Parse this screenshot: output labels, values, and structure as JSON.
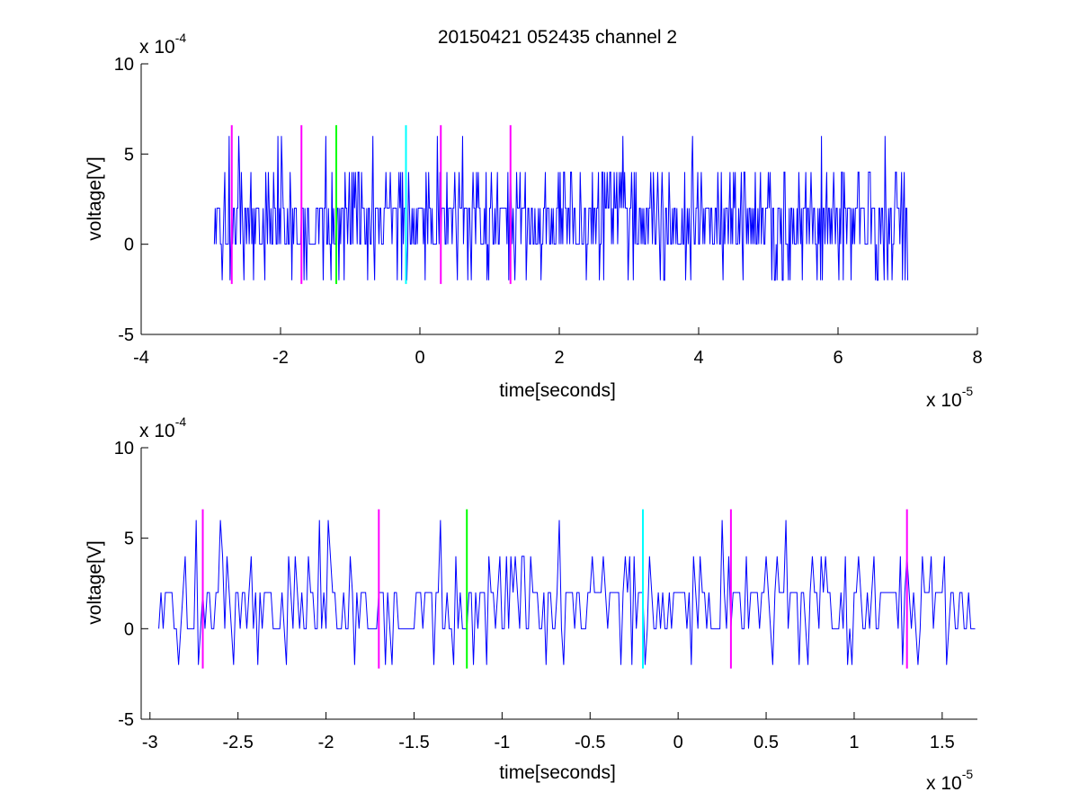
{
  "title": "20150421 052435 channel 2",
  "colors": {
    "signal": "#0000ff",
    "marker_magenta": "#ff00ff",
    "marker_green": "#00ff00",
    "marker_cyan": "#00ffff",
    "axes": "#000000",
    "background": "#ffffff"
  },
  "chart_data": [
    {
      "type": "line",
      "title": "20150421 052435 channel 2",
      "xlabel": "time[seconds]",
      "ylabel": "voltage[V]",
      "x_multiplier": "x 10",
      "x_exponent": "-5",
      "y_multiplier": "x 10",
      "y_exponent": "-4",
      "xlim": [
        -4,
        8
      ],
      "ylim": [
        -5,
        10
      ],
      "x_ticks": [
        -4,
        -2,
        0,
        2,
        4,
        6,
        8
      ],
      "y_ticks": [
        -5,
        0,
        5,
        10
      ],
      "grid": false,
      "series": [
        {
          "x_start": -2.95,
          "x_end": 7.0,
          "values_note": "quantized noise signal, levels in units of 1e-4 V",
          "levels": [
            -2,
            0,
            2,
            4,
            6
          ],
          "typical_level": 2
        }
      ],
      "markers": [
        {
          "x": -2.7,
          "color": "magenta",
          "y_range": [
            -2.2,
            6.6
          ]
        },
        {
          "x": -1.7,
          "color": "magenta",
          "y_range": [
            -2.2,
            6.6
          ]
        },
        {
          "x": -1.2,
          "color": "green",
          "y_range": [
            -2.2,
            6.6
          ]
        },
        {
          "x": -0.2,
          "color": "cyan",
          "y_range": [
            -2.2,
            6.6
          ]
        },
        {
          "x": 0.3,
          "color": "magenta",
          "y_range": [
            -2.2,
            6.6
          ]
        },
        {
          "x": 1.3,
          "color": "magenta",
          "y_range": [
            -2.2,
            6.6
          ]
        }
      ]
    },
    {
      "type": "line",
      "xlabel": "time[seconds]",
      "ylabel": "voltage[V]",
      "x_multiplier": "x 10",
      "x_exponent": "-5",
      "y_multiplier": "x 10",
      "y_exponent": "-4",
      "xlim": [
        -3.05,
        1.7
      ],
      "ylim": [
        -5,
        10
      ],
      "x_ticks": [
        -3,
        -2.5,
        -2,
        -1.5,
        -1,
        -0.5,
        0,
        0.5,
        1,
        1.5
      ],
      "y_ticks": [
        -5,
        0,
        5,
        10
      ],
      "grid": false,
      "series": [
        {
          "x_start": -2.95,
          "x_end": 1.7,
          "values_note": "zoomed view of the same quantized noise signal, levels in units of 1e-4 V",
          "levels": [
            -2,
            0,
            2,
            4,
            6
          ],
          "typical_level": 2
        }
      ],
      "markers": [
        {
          "x": -2.7,
          "color": "magenta",
          "y_range": [
            -2.2,
            6.6
          ]
        },
        {
          "x": -1.7,
          "color": "magenta",
          "y_range": [
            -2.2,
            6.6
          ]
        },
        {
          "x": -1.2,
          "color": "green",
          "y_range": [
            -2.2,
            6.6
          ]
        },
        {
          "x": -0.2,
          "color": "cyan",
          "y_range": [
            -2.2,
            6.6
          ]
        },
        {
          "x": 0.3,
          "color": "magenta",
          "y_range": [
            -2.2,
            6.6
          ]
        },
        {
          "x": 1.3,
          "color": "magenta",
          "y_range": [
            -2.2,
            6.6
          ]
        }
      ]
    }
  ]
}
